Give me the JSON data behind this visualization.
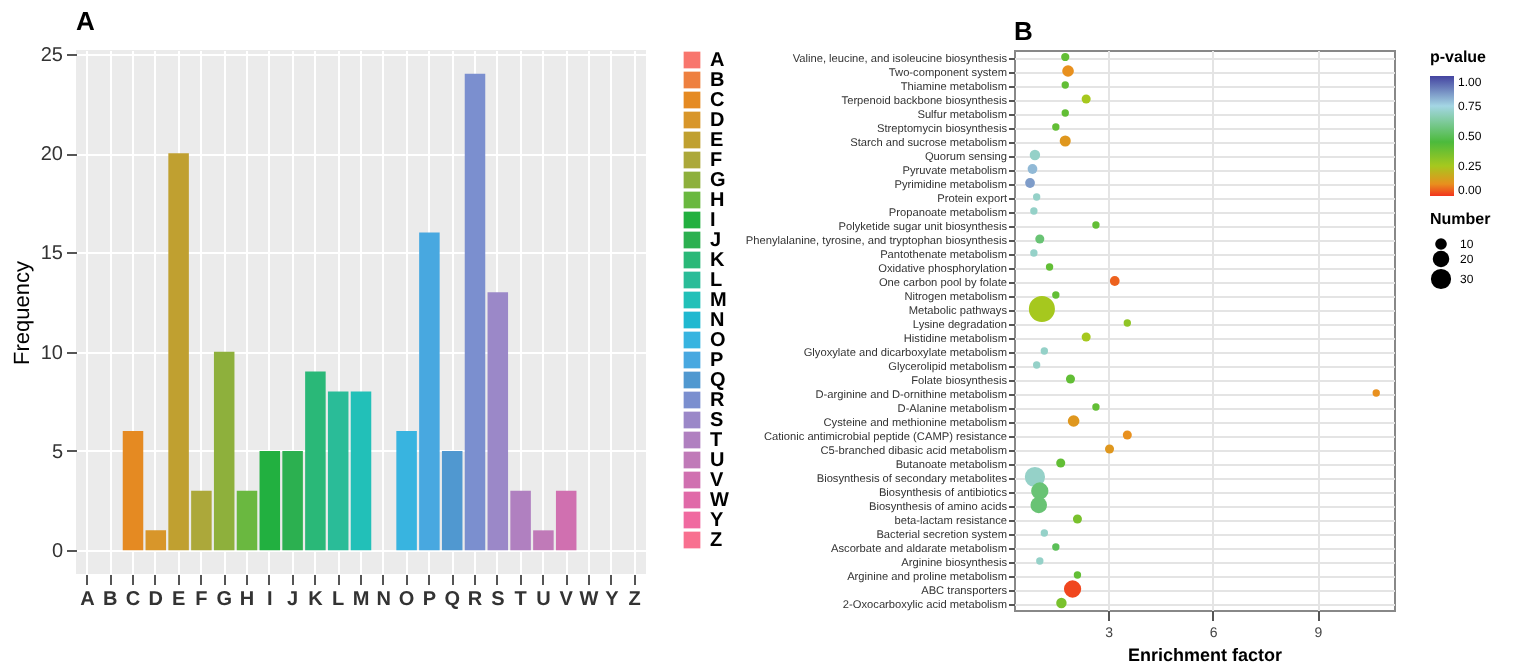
{
  "chart_data": [
    {
      "type": "bar",
      "title": "A",
      "ylabel": "Frequency",
      "categories": [
        "A",
        "B",
        "C",
        "D",
        "E",
        "F",
        "G",
        "H",
        "I",
        "J",
        "K",
        "L",
        "M",
        "N",
        "O",
        "P",
        "Q",
        "R",
        "S",
        "T",
        "U",
        "V",
        "W",
        "Y",
        "Z"
      ],
      "series": [
        {
          "name": "A",
          "color": "#f8766d",
          "values": [
            0,
            null,
            null,
            null,
            null,
            null,
            null,
            null,
            null,
            null,
            null,
            null,
            null,
            null,
            null,
            null,
            null,
            null,
            null,
            null,
            null,
            null,
            null,
            null,
            null
          ]
        },
        {
          "name": "B",
          "color": "#ee8040",
          "values": [
            null,
            0,
            null,
            null,
            null,
            null,
            null,
            null,
            null,
            null,
            null,
            null,
            null,
            null,
            null,
            null,
            null,
            null,
            null,
            null,
            null,
            null,
            null,
            null,
            null
          ]
        },
        {
          "name": "C",
          "color": "#e58a22",
          "values": [
            null,
            null,
            6,
            null,
            null,
            null,
            null,
            null,
            null,
            null,
            null,
            null,
            null,
            null,
            null,
            null,
            null,
            null,
            null,
            null,
            null,
            null,
            null,
            null,
            null
          ]
        },
        {
          "name": "D",
          "color": "#d8962a",
          "values": [
            null,
            null,
            null,
            1,
            null,
            null,
            null,
            null,
            null,
            null,
            null,
            null,
            null,
            null,
            null,
            null,
            null,
            null,
            null,
            null,
            null,
            null,
            null,
            null,
            null
          ]
        },
        {
          "name": "E",
          "color": "#c0a030",
          "values": [
            null,
            null,
            null,
            null,
            20,
            null,
            null,
            null,
            null,
            null,
            null,
            null,
            null,
            null,
            null,
            null,
            null,
            null,
            null,
            null,
            null,
            null,
            null,
            null,
            null
          ]
        },
        {
          "name": "F",
          "color": "#aca83a",
          "values": [
            null,
            null,
            null,
            null,
            null,
            3,
            null,
            null,
            null,
            null,
            null,
            null,
            null,
            null,
            null,
            null,
            null,
            null,
            null,
            null,
            null,
            null,
            null,
            null,
            null
          ]
        },
        {
          "name": "G",
          "color": "#8eb03c",
          "values": [
            null,
            null,
            null,
            null,
            null,
            null,
            10,
            null,
            null,
            null,
            null,
            null,
            null,
            null,
            null,
            null,
            null,
            null,
            null,
            null,
            null,
            null,
            null,
            null,
            null
          ]
        },
        {
          "name": "H",
          "color": "#6ab840",
          "values": [
            null,
            null,
            null,
            null,
            null,
            null,
            null,
            3,
            null,
            null,
            null,
            null,
            null,
            null,
            null,
            null,
            null,
            null,
            null,
            null,
            null,
            null,
            null,
            null,
            null
          ]
        },
        {
          "name": "I",
          "color": "#22b040",
          "values": [
            null,
            null,
            null,
            null,
            null,
            null,
            null,
            null,
            5,
            null,
            null,
            null,
            null,
            null,
            null,
            null,
            null,
            null,
            null,
            null,
            null,
            null,
            null,
            null,
            null
          ]
        },
        {
          "name": "J",
          "color": "#2cb050",
          "values": [
            null,
            null,
            null,
            null,
            null,
            null,
            null,
            null,
            null,
            5,
            null,
            null,
            null,
            null,
            null,
            null,
            null,
            null,
            null,
            null,
            null,
            null,
            null,
            null,
            null
          ]
        },
        {
          "name": "K",
          "color": "#2ab878",
          "values": [
            null,
            null,
            null,
            null,
            null,
            null,
            null,
            null,
            null,
            null,
            9,
            null,
            null,
            null,
            null,
            null,
            null,
            null,
            null,
            null,
            null,
            null,
            null,
            null,
            null
          ]
        },
        {
          "name": "L",
          "color": "#2abc98",
          "values": [
            null,
            null,
            null,
            null,
            null,
            null,
            null,
            null,
            null,
            null,
            null,
            8,
            null,
            null,
            null,
            null,
            null,
            null,
            null,
            null,
            null,
            null,
            null,
            null,
            null
          ]
        },
        {
          "name": "M",
          "color": "#22c0b8",
          "values": [
            null,
            null,
            null,
            null,
            null,
            null,
            null,
            null,
            null,
            null,
            null,
            null,
            8,
            null,
            null,
            null,
            null,
            null,
            null,
            null,
            null,
            null,
            null,
            null,
            null
          ]
        },
        {
          "name": "N",
          "color": "#20b8d0",
          "values": [
            null,
            null,
            null,
            null,
            null,
            null,
            null,
            null,
            null,
            null,
            null,
            null,
            null,
            0,
            null,
            null,
            null,
            null,
            null,
            null,
            null,
            null,
            null,
            null,
            null
          ]
        },
        {
          "name": "O",
          "color": "#38b4e0",
          "values": [
            null,
            null,
            null,
            null,
            null,
            null,
            null,
            null,
            null,
            null,
            null,
            null,
            null,
            null,
            6,
            null,
            null,
            null,
            null,
            null,
            null,
            null,
            null,
            null,
            null
          ]
        },
        {
          "name": "P",
          "color": "#48a8e0",
          "values": [
            null,
            null,
            null,
            null,
            null,
            null,
            null,
            null,
            null,
            null,
            null,
            null,
            null,
            null,
            null,
            16,
            null,
            null,
            null,
            null,
            null,
            null,
            null,
            null,
            null
          ]
        },
        {
          "name": "Q",
          "color": "#5098d0",
          "values": [
            null,
            null,
            null,
            null,
            null,
            null,
            null,
            null,
            null,
            null,
            null,
            null,
            null,
            null,
            null,
            null,
            5,
            null,
            null,
            null,
            null,
            null,
            null,
            null,
            null
          ]
        },
        {
          "name": "R",
          "color": "#7b8fcf",
          "values": [
            null,
            null,
            null,
            null,
            null,
            null,
            null,
            null,
            null,
            null,
            null,
            null,
            null,
            null,
            null,
            null,
            null,
            24,
            null,
            null,
            null,
            null,
            null,
            null,
            null
          ]
        },
        {
          "name": "S",
          "color": "#9b88c8",
          "values": [
            null,
            null,
            null,
            null,
            null,
            null,
            null,
            null,
            null,
            null,
            null,
            null,
            null,
            null,
            null,
            null,
            null,
            null,
            13,
            null,
            null,
            null,
            null,
            null,
            null
          ]
        },
        {
          "name": "T",
          "color": "#b080c0",
          "values": [
            null,
            null,
            null,
            null,
            null,
            null,
            null,
            null,
            null,
            null,
            null,
            null,
            null,
            null,
            null,
            null,
            null,
            null,
            null,
            3,
            null,
            null,
            null,
            null,
            null
          ]
        },
        {
          "name": "U",
          "color": "#c07ab8",
          "values": [
            null,
            null,
            null,
            null,
            null,
            null,
            null,
            null,
            null,
            null,
            null,
            null,
            null,
            null,
            null,
            null,
            null,
            null,
            null,
            null,
            1,
            null,
            null,
            null,
            null
          ]
        },
        {
          "name": "V",
          "color": "#d070b0",
          "values": [
            null,
            null,
            null,
            null,
            null,
            null,
            null,
            null,
            null,
            null,
            null,
            null,
            null,
            null,
            null,
            null,
            null,
            null,
            null,
            null,
            null,
            3,
            null,
            null,
            null
          ]
        },
        {
          "name": "W",
          "color": "#e06aa8",
          "values": [
            null,
            null,
            null,
            null,
            null,
            null,
            null,
            null,
            null,
            null,
            null,
            null,
            null,
            null,
            null,
            null,
            null,
            null,
            null,
            null,
            null,
            null,
            0,
            null,
            null
          ]
        },
        {
          "name": "Y",
          "color": "#f06aa0",
          "values": [
            null,
            null,
            null,
            null,
            null,
            null,
            null,
            null,
            null,
            null,
            null,
            null,
            null,
            null,
            null,
            null,
            null,
            null,
            null,
            null,
            null,
            null,
            null,
            0,
            null
          ]
        },
        {
          "name": "Z",
          "color": "#f87090",
          "values": [
            null,
            null,
            null,
            null,
            null,
            null,
            null,
            null,
            null,
            null,
            null,
            null,
            null,
            null,
            null,
            null,
            null,
            null,
            null,
            null,
            null,
            null,
            null,
            null,
            0
          ]
        }
      ],
      "ylim": [
        -1.2,
        25.2
      ],
      "yticks": [
        0,
        5,
        10,
        15,
        20,
        25
      ],
      "grid": true,
      "legend": "right"
    },
    {
      "type": "bubble",
      "title": "B",
      "orientation": "horizontal",
      "xlabel": "Enrichment factor",
      "clabel": "p-value",
      "legend_title": "Number",
      "categories": [
        "Valine, leucine, and isoleucine biosynthesis",
        "Two-component system",
        "Thiamine metabolism",
        "Terpenoid backbone biosynthesis",
        "Sulfur metabolism",
        "Streptomycin biosynthesis",
        "Starch and sucrose metabolism",
        "Quorum sensing",
        "Pyruvate metabolism",
        "Pyrimidine metabolism",
        "Protein export",
        "Propanoate metabolism",
        "Polyketide sugar unit biosynthesis",
        "Phenylalanine, tyrosine, and tryptophan biosynthesis",
        "Pantothenate metabolism",
        "Oxidative phosphorylation",
        "One carbon pool by folate",
        "Nitrogen metabolism",
        "Metabolic pathways",
        "Lysine degradation",
        "Histidine metabolism",
        "Glyoxylate and dicarboxylate metabolism",
        "Glycerolipid metabolism",
        "Folate biosynthesis",
        "D-arginine and D-ornithine metabolism",
        "D-Alanine metabolism",
        "Cysteine and methionine metabolism",
        "Cationic antimicrobial peptide (CAMP) resistance",
        "C5-branched dibasic acid metabolism",
        "Butanoate metabolism",
        "Biosynthesis of secondary metabolites",
        "Biosynthesis of antibiotics",
        "Biosynthesis of amino acids",
        "beta-lactam resistance",
        "Bacterial secretion system",
        "Ascorbate and aldarate metabolism",
        "Arginine biosynthesis",
        "Arginine and proline metabolism",
        "ABC transporters",
        "2-Oxocarboxylic acid metabolism"
      ],
      "values": [
        1.77,
        1.85,
        1.77,
        2.37,
        1.77,
        1.5,
        1.77,
        0.9,
        0.83,
        0.76,
        0.95,
        0.87,
        2.65,
        1.04,
        0.87,
        1.32,
        3.19,
        1.5,
        1.1,
        3.55,
        2.37,
        1.17,
        0.95,
        1.92,
        10.69,
        2.65,
        2.01,
        3.55,
        3.04,
        1.64,
        0.9,
        1.04,
        1.01,
        2.12,
        1.17,
        1.5,
        1.04,
        2.12,
        1.98,
        1.66
      ],
      "sizes": [
        5,
        10,
        4,
        6,
        4,
        4,
        9,
        8,
        7,
        7,
        4,
        4,
        4,
        6,
        4,
        4,
        7,
        4,
        50,
        4,
        6,
        4,
        4,
        6,
        4,
        4,
        10,
        6,
        6,
        6,
        30,
        22,
        20,
        6,
        4,
        4,
        4,
        4,
        22,
        8
      ],
      "cvalues": [
        0.4,
        0.1,
        0.4,
        0.25,
        0.4,
        0.4,
        0.12,
        0.7,
        0.8,
        0.85,
        0.7,
        0.7,
        0.4,
        0.55,
        0.7,
        0.4,
        0.05,
        0.4,
        0.25,
        0.3,
        0.25,
        0.7,
        0.7,
        0.4,
        0.1,
        0.4,
        0.12,
        0.1,
        0.12,
        0.4,
        0.7,
        0.55,
        0.55,
        0.35,
        0.7,
        0.5,
        0.7,
        0.4,
        0.02,
        0.35
      ],
      "size_legend": [
        10,
        20,
        30
      ],
      "clim": [
        0,
        1
      ],
      "cticks": [
        {
          "value": 0,
          "label": "0.00"
        },
        {
          "value": 0.25,
          "label": "0.25"
        },
        {
          "value": 0.5,
          "label": "0.50"
        },
        {
          "value": 0.75,
          "label": "0.75"
        },
        {
          "value": 1,
          "label": "1.00"
        }
      ],
      "xlim": [
        0.3,
        11.2
      ],
      "xticks": [
        3,
        6,
        9
      ],
      "grid": true
    }
  ]
}
